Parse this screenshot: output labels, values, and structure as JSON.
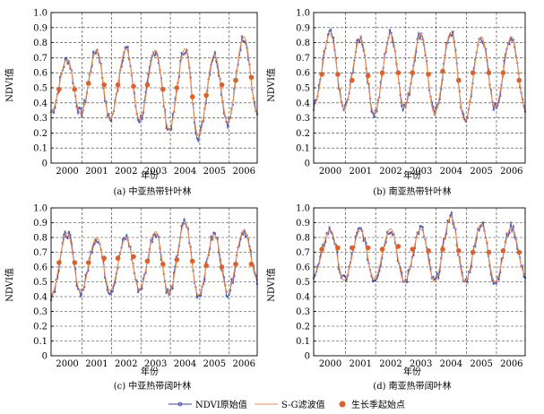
{
  "legend": {
    "raw_label": "NDVI原始值",
    "sg_label": "S-G滤波值",
    "pt_label": "生长季起始点"
  },
  "colors": {
    "raw": "#3a47a8",
    "sg": "#f08a4b",
    "pt": "#e0602a",
    "grid": "#333333"
  },
  "chart_data": [
    {
      "type": "line",
      "caption": "(a) 中亚热带针叶林",
      "xlabel": "年份",
      "ylabel": "NDVI值",
      "ylim": [
        0,
        1.0
      ],
      "yticks": [
        "0",
        "0.1",
        "0.2",
        "0.3",
        "0.4",
        "0.5",
        "0.6",
        "0.7",
        "0.8",
        "0.9",
        "1.0"
      ],
      "xlim": [
        1999.45,
        2006.45
      ],
      "xticks": [
        "2000",
        "2001",
        "2002",
        "2003",
        "2004",
        "2005",
        "2006"
      ],
      "grid": true,
      "series": [
        {
          "peaks": [
            0.69,
            0.75,
            0.76,
            0.75,
            0.76,
            0.72,
            0.84
          ],
          "troughs": [
            0.34,
            0.33,
            0.29,
            0.29,
            0.22,
            0.18,
            0.27,
            0.33
          ]
        },
        {
          "markers": [
            0.49,
            0.49,
            0.53,
            0.52,
            0.52,
            0.51,
            0.52,
            0.49,
            0.5,
            0.44,
            0.45,
            0.52,
            0.55,
            0.57
          ]
        }
      ]
    },
    {
      "type": "line",
      "caption": "(b) 南亚热带针叶林",
      "xlabel": "年份",
      "ylabel": "NDVI值",
      "ylim": [
        0,
        1.0
      ],
      "yticks": [
        "0",
        "0.1",
        "0.2",
        "0.3",
        "0.4",
        "0.5",
        "0.6",
        "0.7",
        "0.8",
        "0.9",
        "1.0"
      ],
      "xlim": [
        1999.45,
        2006.45
      ],
      "xticks": [
        "2000",
        "2001",
        "2002",
        "2003",
        "2004",
        "2005",
        "2006"
      ],
      "grid": true,
      "series": [
        {
          "peaks": [
            0.86,
            0.83,
            0.86,
            0.86,
            0.87,
            0.84,
            0.84
          ],
          "troughs": [
            0.38,
            0.36,
            0.33,
            0.37,
            0.33,
            0.28,
            0.37,
            0.37
          ]
        },
        {
          "markers": [
            0.59,
            0.59,
            0.55,
            0.58,
            0.6,
            0.6,
            0.6,
            0.59,
            0.61,
            0.55,
            0.6,
            0.6,
            0.6,
            0.55
          ]
        }
      ]
    },
    {
      "type": "line",
      "caption": "(c) 中亚热带阔叶林",
      "xlabel": "年份",
      "ylabel": "NDVI值",
      "ylim": [
        0,
        1.0
      ],
      "yticks": [
        "0",
        "0.1",
        "0.2",
        "0.3",
        "0.4",
        "0.5",
        "0.6",
        "0.7",
        "0.8",
        "0.9",
        "1.0"
      ],
      "xlim": [
        1999.45,
        2006.45
      ],
      "xticks": [
        "2000",
        "2001",
        "2002",
        "2003",
        "2004",
        "2005",
        "2006"
      ],
      "grid": true,
      "series": [
        {
          "peaks": [
            0.83,
            0.8,
            0.8,
            0.84,
            0.9,
            0.82,
            0.85
          ],
          "troughs": [
            0.41,
            0.43,
            0.44,
            0.45,
            0.42,
            0.41,
            0.43,
            0.52
          ]
        },
        {
          "markers": [
            0.63,
            0.63,
            0.63,
            0.66,
            0.66,
            0.67,
            0.64,
            0.62,
            0.65,
            0.64,
            0.61,
            0.6,
            0.62,
            0.62
          ]
        }
      ]
    },
    {
      "type": "line",
      "caption": "(d) 南亚热带阔叶林",
      "xlabel": "年份",
      "ylabel": "NDVI值",
      "ylim": [
        0,
        1.0
      ],
      "yticks": [
        "0",
        "0.1",
        "0.2",
        "0.3",
        "0.4",
        "0.5",
        "0.6",
        "0.7",
        "0.8",
        "0.9",
        "1.0"
      ],
      "xlim": [
        1999.45,
        2006.45
      ],
      "xticks": [
        "2000",
        "2001",
        "2002",
        "2003",
        "2004",
        "2005",
        "2006"
      ],
      "grid": true,
      "series": [
        {
          "peaks": [
            0.85,
            0.85,
            0.86,
            0.86,
            0.94,
            0.89,
            0.87
          ],
          "troughs": [
            0.55,
            0.51,
            0.52,
            0.5,
            0.5,
            0.5,
            0.5,
            0.55
          ]
        },
        {
          "markers": [
            0.72,
            0.73,
            0.73,
            0.73,
            0.72,
            0.74,
            0.72,
            0.71,
            0.72,
            0.71,
            0.7,
            0.7,
            0.71,
            0.7
          ]
        }
      ]
    }
  ]
}
